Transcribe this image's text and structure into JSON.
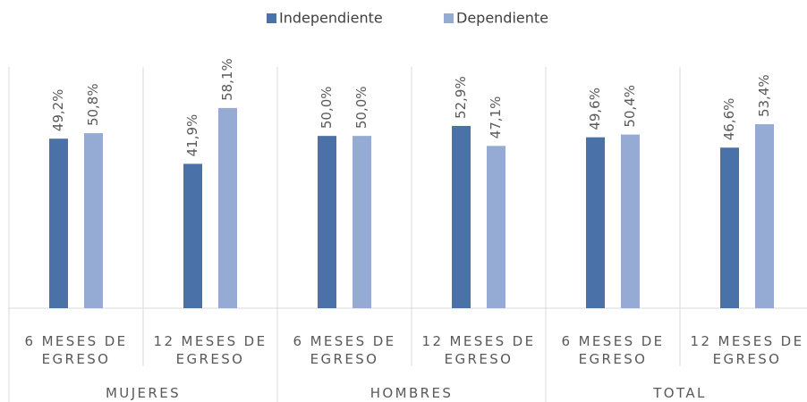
{
  "chart_data": {
    "type": "bar",
    "categories": [
      "6 MESES DE EGRESO",
      "12 MESES DE EGRESO",
      "6 MESES DE EGRESO",
      "12 MESES DE EGRESO",
      "6 MESES DE EGRESO",
      "12 MESES DE EGRESO"
    ],
    "groups": [
      "MUJERES",
      "HOMBRES",
      "TOTAL"
    ],
    "series": [
      {
        "name": "Independiente",
        "color": "#4a72a8",
        "values": [
          49.2,
          41.9,
          50.0,
          52.9,
          49.6,
          46.6
        ],
        "value_labels": [
          "49,2%",
          "41,9%",
          "50,0%",
          "52,9%",
          "49,6%",
          "46,6%"
        ]
      },
      {
        "name": "Dependiente",
        "color": "#95abd3",
        "values": [
          50.8,
          58.1,
          50.0,
          47.1,
          50.4,
          53.4
        ],
        "value_labels": [
          "50,8%",
          "58,1%",
          "50,0%",
          "47,1%",
          "50,4%",
          "53,4%"
        ]
      }
    ],
    "ylim": [
      0,
      70
    ],
    "legend": "top"
  }
}
